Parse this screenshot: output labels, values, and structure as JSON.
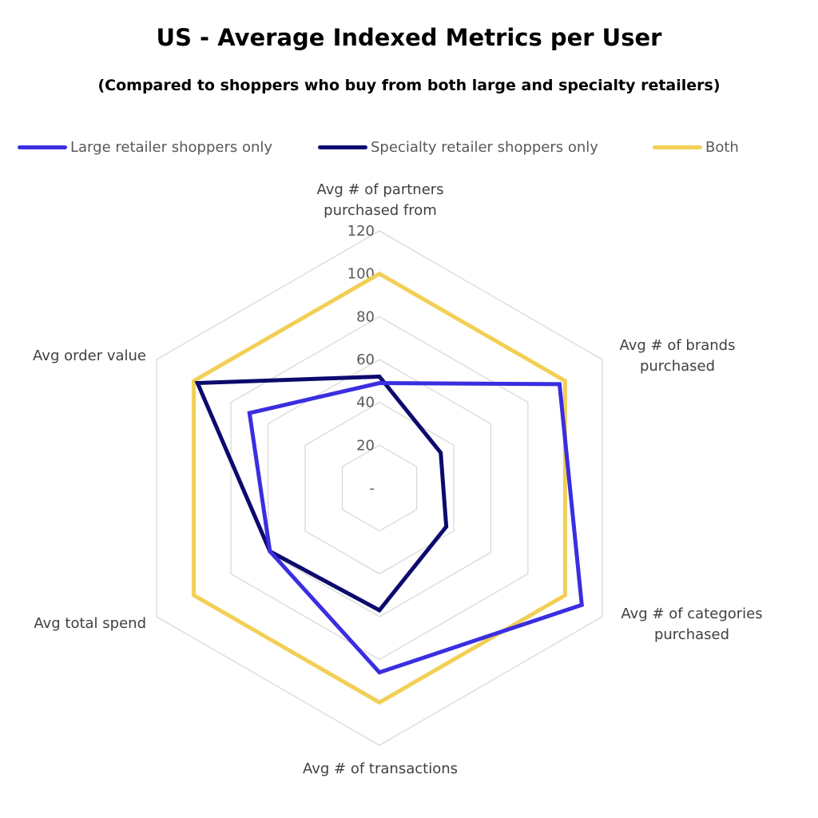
{
  "chart_data": {
    "type": "radar",
    "title": "US - Average Indexed Metrics per User",
    "subtitle": "(Compared to shoppers who buy from both large and specialty retailers)",
    "categories": [
      "Avg # of partners purchased from",
      "Avg # of brands purchased",
      "Avg # of categories purchased",
      "Avg # of transactions",
      "Avg total spend",
      "Avg order value"
    ],
    "category_lines": [
      [
        "Avg # of partners",
        "purchased from"
      ],
      [
        "Avg # of brands",
        "purchased"
      ],
      [
        "Avg # of categories",
        "purchased"
      ],
      [
        "Avg # of transactions"
      ],
      [
        "Avg total spend"
      ],
      [
        "Avg order value"
      ]
    ],
    "rlim": [
      0,
      120
    ],
    "ticks": [
      "-",
      "20",
      "40",
      "60",
      "80",
      "100",
      "120"
    ],
    "tick_values": [
      0,
      20,
      40,
      60,
      80,
      100,
      120
    ],
    "grid": true,
    "legend_position": "top",
    "series": [
      {
        "name": "Large retailer shoppers only",
        "color": "#3a2ee0",
        "values": [
          49,
          97,
          109,
          86,
          59,
          70
        ]
      },
      {
        "name": "Specialty retailer shoppers only",
        "color": "#0d0a6e",
        "values": [
          52,
          33,
          36,
          57,
          59,
          98
        ]
      },
      {
        "name": "Both",
        "color": "#f2cf55",
        "values": [
          100,
          100,
          100,
          100,
          100,
          100
        ]
      }
    ]
  }
}
